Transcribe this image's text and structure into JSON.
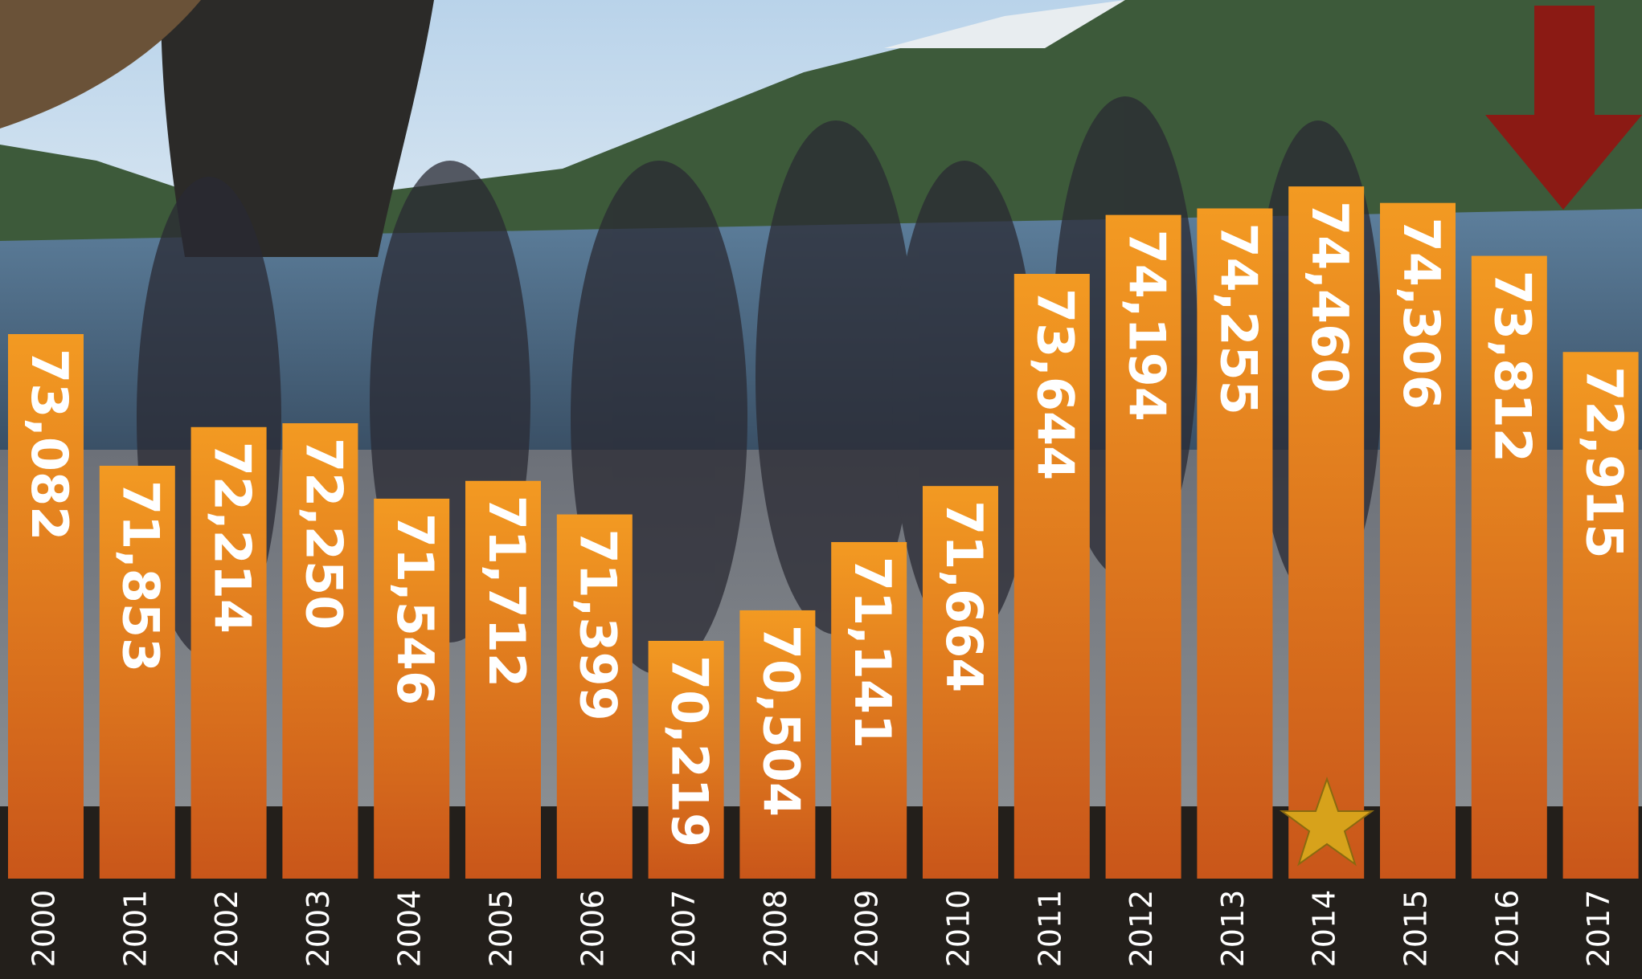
{
  "chart_data": {
    "type": "bar",
    "categories": [
      "2000",
      "2001",
      "2002",
      "2003",
      "2004",
      "2005",
      "2006",
      "2007",
      "2008",
      "2009",
      "2010",
      "2011",
      "2012",
      "2013",
      "2014",
      "2015",
      "2016",
      "2017"
    ],
    "values": [
      73082,
      71853,
      72214,
      72250,
      71546,
      71712,
      71399,
      70219,
      70504,
      71141,
      71664,
      73644,
      74194,
      74255,
      74460,
      74306,
      73812,
      72915
    ],
    "value_labels": [
      "73,082",
      "71,853",
      "72,214",
      "72,250",
      "71,546",
      "71,712",
      "71,399",
      "70,219",
      "70,504",
      "71,141",
      "71,664",
      "73,644",
      "74,194",
      "74,255",
      "74,460",
      "74,306",
      "73,812",
      "72,915"
    ],
    "ylim": [
      68000,
      76200
    ]
  }
}
